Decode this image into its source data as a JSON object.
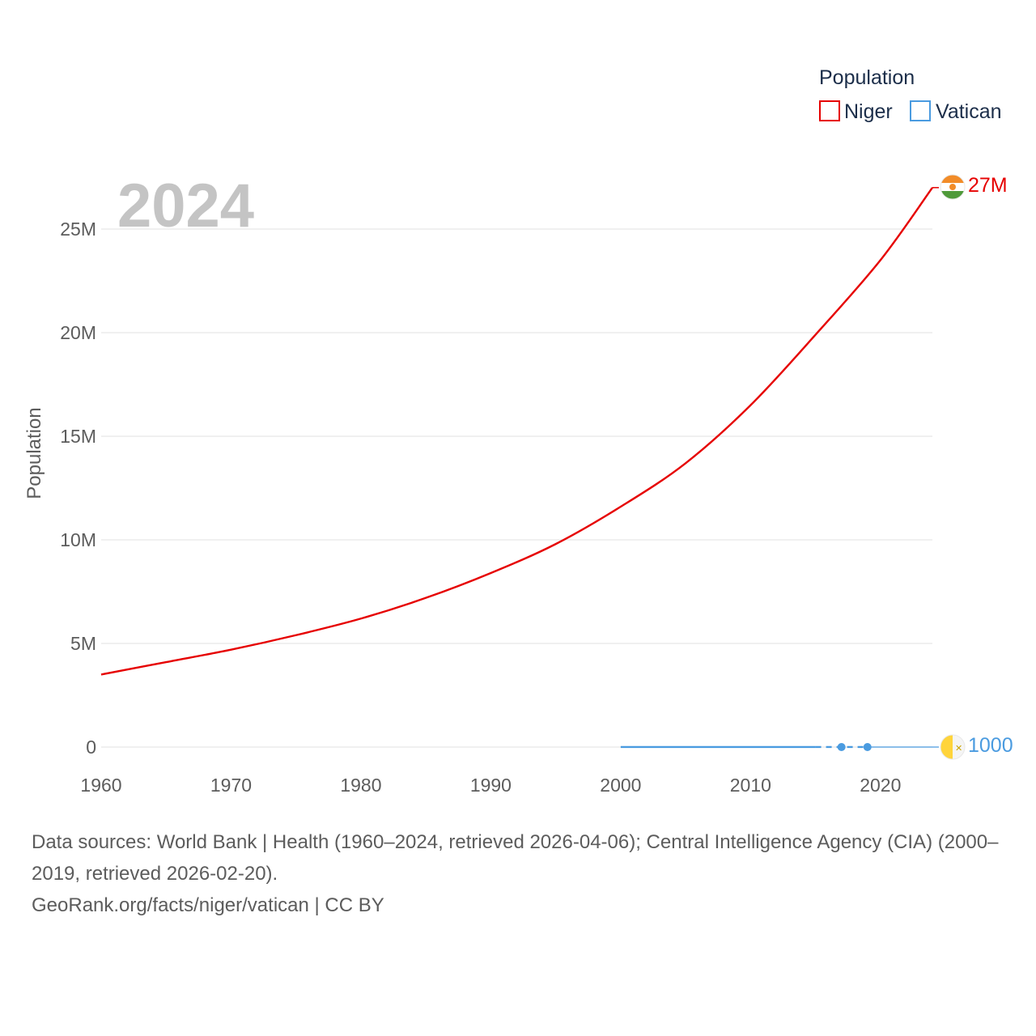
{
  "chart_data": {
    "type": "line",
    "year_label": "2024",
    "ylabel": "Population",
    "xlim": [
      1960,
      2024
    ],
    "ylim": [
      0,
      25000000
    ],
    "x_ticks": [
      {
        "value": 1960,
        "label": "1960"
      },
      {
        "value": 1970,
        "label": "1970"
      },
      {
        "value": 1980,
        "label": "1980"
      },
      {
        "value": 1990,
        "label": "1990"
      },
      {
        "value": 2000,
        "label": "2000"
      },
      {
        "value": 2010,
        "label": "2010"
      },
      {
        "value": 2020,
        "label": "2020"
      }
    ],
    "y_ticks": [
      {
        "value": 0,
        "label": "0"
      },
      {
        "value": 5000000,
        "label": "5M"
      },
      {
        "value": 10000000,
        "label": "10M"
      },
      {
        "value": 15000000,
        "label": "15M"
      },
      {
        "value": 20000000,
        "label": "20M"
      },
      {
        "value": 25000000,
        "label": "25M"
      }
    ],
    "legend": {
      "title": "Population",
      "position": "top-right"
    },
    "series": [
      {
        "name": "Niger",
        "color": "#e60000",
        "end_label": "27M",
        "flag": "niger-flag-icon",
        "points": [
          [
            1960,
            3500000
          ],
          [
            1965,
            4100000
          ],
          [
            1970,
            4700000
          ],
          [
            1975,
            5400000
          ],
          [
            1980,
            6200000
          ],
          [
            1985,
            7200000
          ],
          [
            1990,
            8400000
          ],
          [
            1995,
            9800000
          ],
          [
            2000,
            11600000
          ],
          [
            2005,
            13700000
          ],
          [
            2010,
            16500000
          ],
          [
            2015,
            19900000
          ],
          [
            2020,
            23500000
          ],
          [
            2024,
            27000000
          ]
        ]
      },
      {
        "name": "Vatican",
        "color": "#4a9be0",
        "end_label": "1000",
        "flag": "vatican-flag-icon",
        "solid_range": [
          2000,
          2015
        ],
        "dashed_range": [
          2015,
          2019
        ],
        "marker_points": [
          [
            2017,
            1000
          ],
          [
            2019,
            1000
          ]
        ],
        "points": [
          [
            2000,
            1000
          ],
          [
            2015,
            1000
          ],
          [
            2017,
            1000
          ],
          [
            2019,
            1000
          ],
          [
            2024,
            1000
          ]
        ]
      }
    ]
  },
  "footer": {
    "sources": "Data sources: World Bank | Health (1960–2024, retrieved 2026-04-06); Central Intelligence Agency (CIA) (2000–2019, retrieved 2026-02-20).",
    "credit": "GeoRank.org/facts/niger/vatican | CC BY"
  }
}
